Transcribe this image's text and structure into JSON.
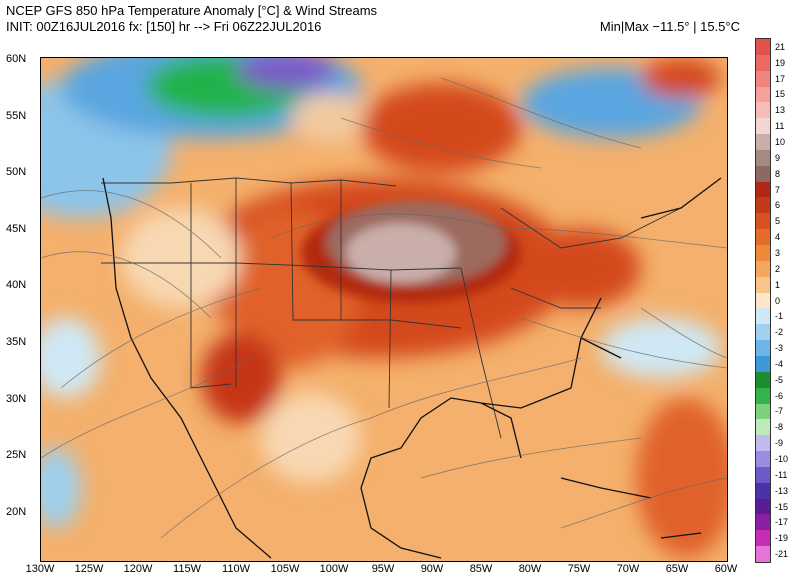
{
  "header": {
    "line1": "NCEP GFS 850 hPa Temperature Anomaly [°C] & Wind Streams",
    "line2": "INIT: 00Z16JUL2016 fx: [150] hr --> Fri 06Z22JUL2016",
    "minmax": "Min|Max −11.5° | 15.5°C"
  },
  "map": {
    "lat_labels": [
      "60N",
      "55N",
      "50N",
      "45N",
      "40N",
      "35N",
      "30N",
      "25N",
      "20N"
    ],
    "lon_labels": [
      "130W",
      "125W",
      "120W",
      "115W",
      "110W",
      "105W",
      "100W",
      "95W",
      "90W",
      "85W",
      "80W",
      "75W",
      "70W",
      "65W",
      "60W"
    ],
    "anomaly_colors": {
      "warm_orange": "#f4a460",
      "red": "#d44a1c",
      "dark_red": "#b22a10",
      "brown": "#9c6b5e",
      "cold_blue": "#5aa6e0",
      "green": "#22b24c",
      "purple": "#7a5cc6"
    }
  },
  "colorbar": {
    "labels": [
      "21",
      "19",
      "17",
      "15",
      "13",
      "11",
      "10",
      "9",
      "8",
      "7",
      "6",
      "5",
      "4",
      "3",
      "2",
      "1",
      "0",
      "-1",
      "-2",
      "-3",
      "-4",
      "-5",
      "-6",
      "-7",
      "-8",
      "-9",
      "-10",
      "-11",
      "-13",
      "-15",
      "-17",
      "-19",
      "-21"
    ],
    "colors": [
      "#e0524a",
      "#e96a62",
      "#ef857e",
      "#f3a19b",
      "#f6bcb7",
      "#f2d6d2",
      "#c9aea9",
      "#a58983",
      "#8c6a62",
      "#b12616",
      "#c23a1a",
      "#d6531f",
      "#e36c2a",
      "#ec8a3a",
      "#f3a65e",
      "#f8c48c",
      "#fde5c7",
      "#cfe8f5",
      "#9fd0ee",
      "#6cb6e6",
      "#3e97d8",
      "#1f8d2f",
      "#33b34a",
      "#7fd07a",
      "#bfe8bd",
      "#c2b9ee",
      "#9c8ce0",
      "#6c5ac9",
      "#4a33a8",
      "#5a1c95",
      "#8a1fa6",
      "#c72cb6",
      "#e873d8"
    ]
  }
}
